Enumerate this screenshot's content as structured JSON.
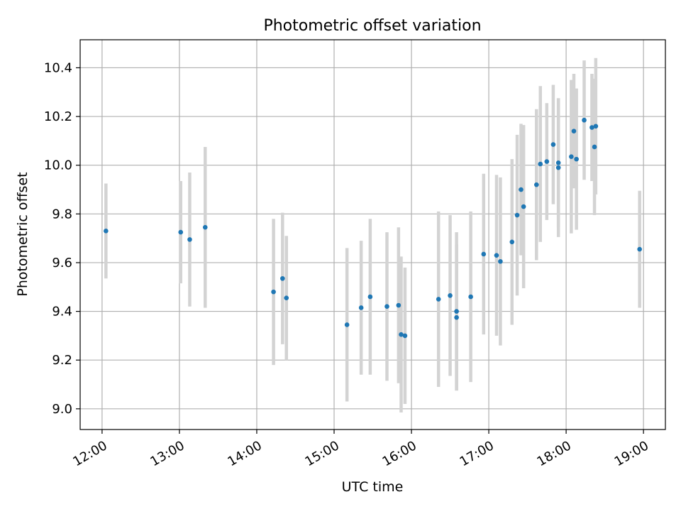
{
  "chart_data": {
    "type": "scatter",
    "title": "Photometric offset variation",
    "xlabel": "UTC time",
    "ylabel": "Photometric offset",
    "xlim": [
      "11:43",
      "19:17"
    ],
    "ylim": [
      8.915,
      10.515
    ],
    "grid": true,
    "x_ticks": [
      "12:00",
      "13:00",
      "14:00",
      "15:00",
      "16:00",
      "17:00",
      "18:00",
      "19:00"
    ],
    "y_ticks": [
      "9.0",
      "9.2",
      "9.4",
      "9.6",
      "9.8",
      "10.0",
      "10.2",
      "10.4"
    ],
    "colors": {
      "points": "#1f77b4",
      "errorbars": "#d3d3d3",
      "grid": "#b0b0b0",
      "axes": "#000000"
    },
    "series": [
      {
        "points": [
          {
            "x": "12:03",
            "y": 9.73,
            "yerr": 0.195
          },
          {
            "x": "13:01",
            "y": 9.725,
            "yerr": 0.21
          },
          {
            "x": "13:08",
            "y": 9.695,
            "yerr": 0.275
          },
          {
            "x": "13:20",
            "y": 9.745,
            "yerr": 0.33
          },
          {
            "x": "14:13",
            "y": 9.48,
            "yerr": 0.3
          },
          {
            "x": "14:20",
            "y": 9.535,
            "yerr": 0.27
          },
          {
            "x": "14:23",
            "y": 9.455,
            "yerr": 0.255
          },
          {
            "x": "15:10",
            "y": 9.345,
            "yerr": 0.315
          },
          {
            "x": "15:21",
            "y": 9.415,
            "yerr": 0.275
          },
          {
            "x": "15:28",
            "y": 9.46,
            "yerr": 0.32
          },
          {
            "x": "15:41",
            "y": 9.42,
            "yerr": 0.305
          },
          {
            "x": "15:50",
            "y": 9.425,
            "yerr": 0.32
          },
          {
            "x": "15:52",
            "y": 9.305,
            "yerr": 0.32
          },
          {
            "x": "15:55",
            "y": 9.3,
            "yerr": 0.28
          },
          {
            "x": "16:21",
            "y": 9.45,
            "yerr": 0.36
          },
          {
            "x": "16:30",
            "y": 9.465,
            "yerr": 0.33
          },
          {
            "x": "16:35",
            "y": 9.4,
            "yerr": 0.325
          },
          {
            "x": "16:35",
            "y": 9.375,
            "yerr": 0.3
          },
          {
            "x": "16:46",
            "y": 9.46,
            "yerr": 0.35
          },
          {
            "x": "16:56",
            "y": 9.635,
            "yerr": 0.33
          },
          {
            "x": "17:06",
            "y": 9.63,
            "yerr": 0.33
          },
          {
            "x": "17:09",
            "y": 9.605,
            "yerr": 0.345
          },
          {
            "x": "17:18",
            "y": 9.685,
            "yerr": 0.34
          },
          {
            "x": "17:22",
            "y": 9.795,
            "yerr": 0.33
          },
          {
            "x": "17:25",
            "y": 9.9,
            "yerr": 0.27
          },
          {
            "x": "17:27",
            "y": 9.83,
            "yerr": 0.335
          },
          {
            "x": "17:37",
            "y": 9.92,
            "yerr": 0.31
          },
          {
            "x": "17:40",
            "y": 10.005,
            "yerr": 0.32
          },
          {
            "x": "17:45",
            "y": 10.015,
            "yerr": 0.24
          },
          {
            "x": "17:50",
            "y": 10.085,
            "yerr": 0.245
          },
          {
            "x": "17:54",
            "y": 10.01,
            "yerr": 0.265
          },
          {
            "x": "17:54",
            "y": 9.99,
            "yerr": 0.285
          },
          {
            "x": "18:04",
            "y": 10.035,
            "yerr": 0.315
          },
          {
            "x": "18:06",
            "y": 10.14,
            "yerr": 0.235
          },
          {
            "x": "18:08",
            "y": 10.025,
            "yerr": 0.29
          },
          {
            "x": "18:14",
            "y": 10.185,
            "yerr": 0.245
          },
          {
            "x": "18:20",
            "y": 10.155,
            "yerr": 0.22
          },
          {
            "x": "18:22",
            "y": 10.075,
            "yerr": 0.28
          },
          {
            "x": "18:23",
            "y": 10.16,
            "yerr": 0.28
          },
          {
            "x": "18:57",
            "y": 9.655,
            "yerr": 0.24
          }
        ]
      }
    ]
  }
}
